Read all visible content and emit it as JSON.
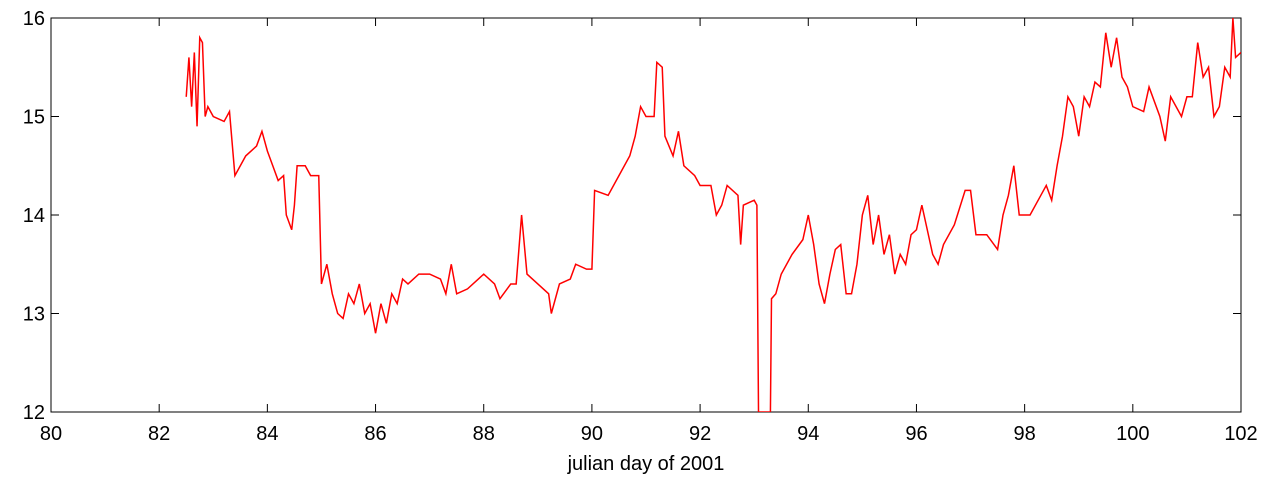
{
  "chart_data": {
    "type": "line",
    "x_label": "julian day of 2001",
    "color": "#ff0000",
    "x": [
      82.5,
      82.55,
      82.6,
      82.65,
      82.7,
      82.75,
      82.8,
      82.85,
      82.9,
      83.0,
      83.2,
      83.3,
      83.4,
      83.6,
      83.8,
      83.9,
      84.0,
      84.1,
      84.2,
      84.3,
      84.35,
      84.45,
      84.5,
      84.55,
      84.7,
      84.8,
      84.95,
      85.0,
      85.1,
      85.2,
      85.3,
      85.4,
      85.5,
      85.6,
      85.7,
      85.8,
      85.9,
      86.0,
      86.1,
      86.2,
      86.3,
      86.4,
      86.5,
      86.6,
      86.8,
      87.0,
      87.2,
      87.3,
      87.4,
      87.5,
      87.7,
      87.9,
      88.0,
      88.2,
      88.3,
      88.5,
      88.6,
      88.7,
      88.8,
      89.0,
      89.2,
      89.25,
      89.4,
      89.6,
      89.7,
      89.9,
      90.0,
      90.05,
      90.3,
      90.5,
      90.7,
      90.8,
      90.9,
      91.0,
      91.15,
      91.2,
      91.3,
      91.35,
      91.5,
      91.6,
      91.7,
      91.9,
      92.0,
      92.2,
      92.3,
      92.4,
      92.5,
      92.7,
      92.75,
      92.8,
      93.0,
      93.05,
      93.08,
      93.3,
      93.32,
      93.4,
      93.5,
      93.7,
      93.9,
      94.0,
      94.1,
      94.2,
      94.3,
      94.4,
      94.5,
      94.6,
      94.7,
      94.8,
      94.9,
      95.0,
      95.1,
      95.2,
      95.3,
      95.4,
      95.5,
      95.6,
      95.7,
      95.8,
      95.9,
      96.0,
      96.1,
      96.3,
      96.4,
      96.5,
      96.7,
      96.9,
      97.0,
      97.1,
      97.3,
      97.5,
      97.6,
      97.7,
      97.8,
      97.9,
      98.1,
      98.3,
      98.4,
      98.5,
      98.6,
      98.7,
      98.8,
      98.9,
      99.0,
      99.1,
      99.2,
      99.3,
      99.4,
      99.5,
      99.6,
      99.7,
      99.8,
      99.9,
      100.0,
      100.2,
      100.3,
      100.5,
      100.6,
      100.7,
      100.9,
      101.0,
      101.1,
      101.2,
      101.3,
      101.4,
      101.5,
      101.6,
      101.7,
      101.8,
      101.85,
      101.9,
      102.0
    ],
    "values": [
      15.2,
      15.6,
      15.1,
      15.65,
      14.9,
      15.8,
      15.75,
      15.0,
      15.1,
      15.0,
      14.95,
      15.05,
      14.4,
      14.6,
      14.7,
      14.85,
      14.65,
      14.5,
      14.35,
      14.4,
      14.0,
      13.85,
      14.1,
      14.5,
      14.5,
      14.4,
      14.4,
      13.3,
      13.5,
      13.2,
      13.0,
      12.95,
      13.2,
      13.1,
      13.3,
      13.0,
      13.1,
      12.8,
      13.1,
      12.9,
      13.2,
      13.1,
      13.35,
      13.3,
      13.4,
      13.4,
      13.35,
      13.2,
      13.5,
      13.2,
      13.25,
      13.35,
      13.4,
      13.3,
      13.15,
      13.3,
      13.3,
      14.0,
      13.4,
      13.3,
      13.2,
      13.0,
      13.3,
      13.35,
      13.5,
      13.45,
      13.45,
      14.25,
      14.2,
      14.4,
      14.6,
      14.8,
      15.1,
      15.0,
      15.0,
      15.55,
      15.5,
      14.8,
      14.6,
      14.85,
      14.5,
      14.4,
      14.3,
      14.3,
      14.0,
      14.1,
      14.3,
      14.2,
      13.7,
      14.1,
      14.15,
      14.1,
      12,
      12,
      13.15,
      13.2,
      13.4,
      13.6,
      13.75,
      14.0,
      13.7,
      13.3,
      13.1,
      13.4,
      13.65,
      13.7,
      13.2,
      13.2,
      13.5,
      14.0,
      14.2,
      13.7,
      14.0,
      13.6,
      13.8,
      13.4,
      13.6,
      13.5,
      13.8,
      13.85,
      14.1,
      13.6,
      13.5,
      13.7,
      13.9,
      14.25,
      14.25,
      13.8,
      13.8,
      13.65,
      14.0,
      14.2,
      14.5,
      14.0,
      14.0,
      14.2,
      14.3,
      14.15,
      14.5,
      14.8,
      15.2,
      15.1,
      14.8,
      15.2,
      15.1,
      15.35,
      15.3,
      15.85,
      15.5,
      15.8,
      15.4,
      15.3,
      15.1,
      15.05,
      15.3,
      15.0,
      14.75,
      15.2,
      15.0,
      15.2,
      15.2,
      15.75,
      15.4,
      15.5,
      15.0,
      15.1,
      15.5,
      15.4,
      16.0,
      15.6,
      15.65
    ],
    "xlim": [
      80,
      102
    ],
    "ylim": [
      12,
      16
    ],
    "xticks": [
      80,
      82,
      84,
      86,
      88,
      90,
      92,
      94,
      96,
      98,
      100,
      102
    ],
    "yticks": [
      12,
      13,
      14,
      15,
      16
    ]
  }
}
